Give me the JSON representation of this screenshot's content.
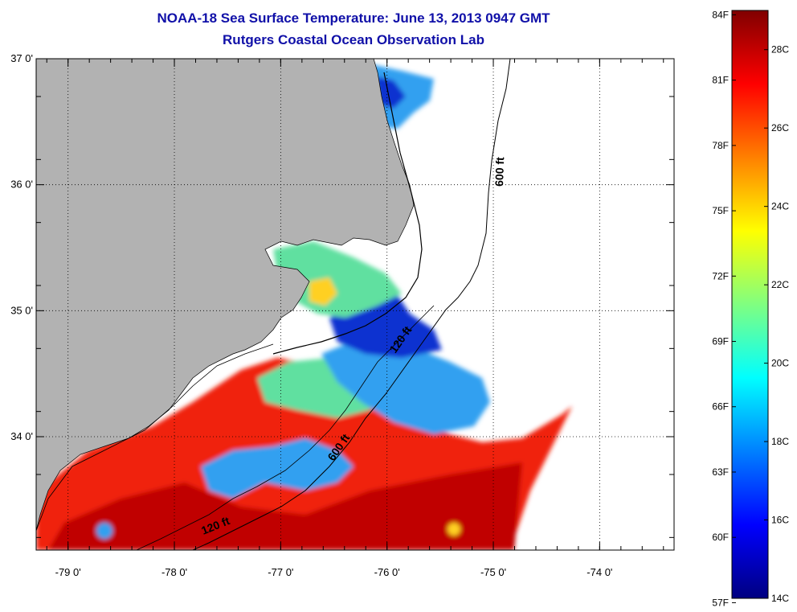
{
  "title": {
    "line1": "NOAA-18 Sea Surface Temperature:  June 13, 2013 0947 GMT",
    "line2": "Rutgers Coastal Ocean Observation Lab"
  },
  "axes": {
    "lat_ticks": [
      {
        "value": 37,
        "label": "37 0'"
      },
      {
        "value": 36,
        "label": "36 0'"
      },
      {
        "value": 35,
        "label": "35 0'"
      },
      {
        "value": 34,
        "label": "34 0'"
      }
    ],
    "lon_ticks": [
      {
        "value": -79,
        "label": "-79 0'"
      },
      {
        "value": -78,
        "label": "-78 0'"
      },
      {
        "value": -77,
        "label": "-77 0'"
      },
      {
        "value": -76,
        "label": "-76 0'"
      },
      {
        "value": -75,
        "label": "-75 0'"
      },
      {
        "value": -74,
        "label": "-74 0'"
      }
    ],
    "lat_range": [
      33.1,
      37
    ],
    "lon_range": [
      -79.3,
      -73.3
    ]
  },
  "contours": [
    {
      "label": "600 ft"
    },
    {
      "label": "600 ft"
    },
    {
      "label": "120 ft"
    },
    {
      "label": "120 ft"
    }
  ],
  "colorbar": {
    "fahrenheit": [
      "84F",
      "81F",
      "78F",
      "75F",
      "72F",
      "69F",
      "66F",
      "63F",
      "60F",
      "57F"
    ],
    "celsius": [
      "28C",
      "26C",
      "24C",
      "22C",
      "20C",
      "18C",
      "16C",
      "14C"
    ],
    "min_c": 14,
    "max_c": 29,
    "colors": [
      "#000080",
      "#0000ff",
      "#0080ff",
      "#00ffff",
      "#80ff80",
      "#ffff00",
      "#ff8000",
      "#ff0000",
      "#800000"
    ]
  },
  "legend_colors": {
    "land": "#b2b2b2",
    "cold": "#1030d0",
    "cool": "#30a0f0",
    "mild": "#60e0a0",
    "warm": "#ffd020",
    "hot": "#f02010",
    "hottest": "#c00000"
  }
}
